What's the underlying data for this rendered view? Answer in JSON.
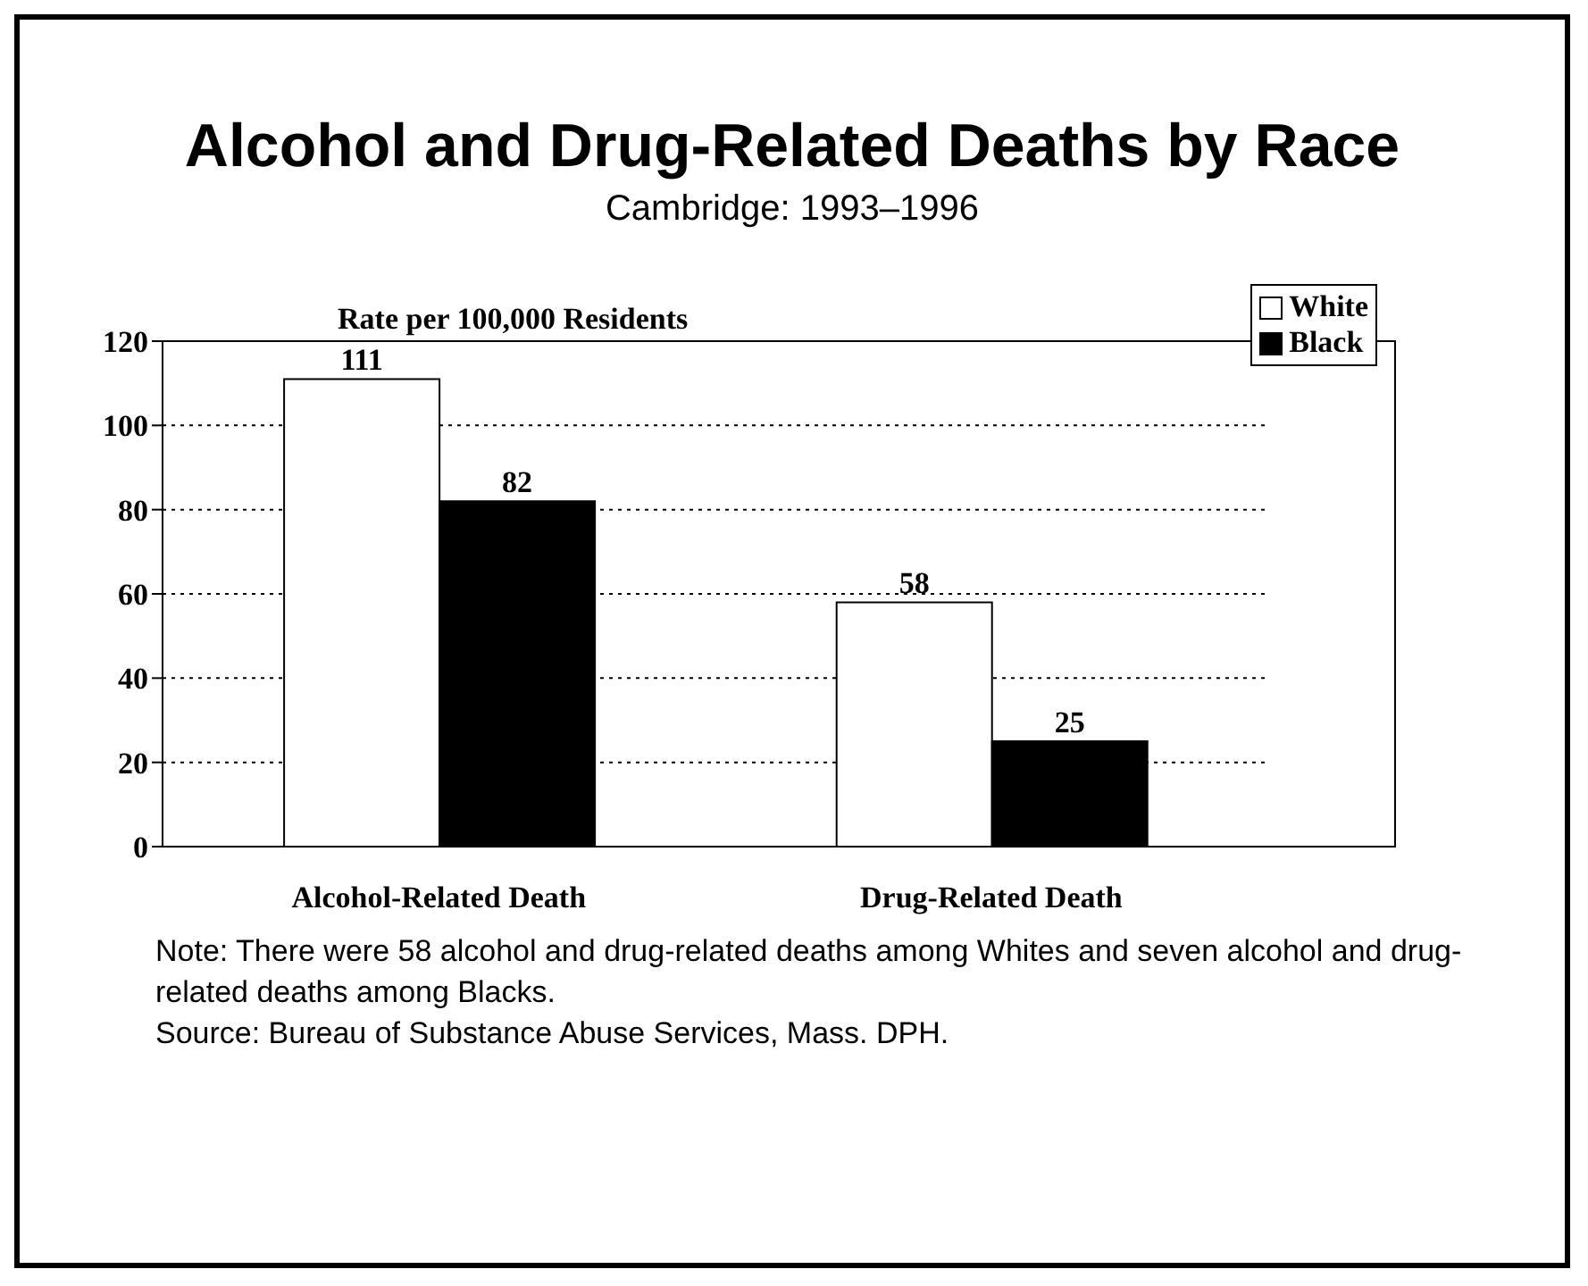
{
  "chart_data": {
    "type": "bar",
    "title": "Alcohol and Drug-Related Deaths by Race",
    "subtitle": "Cambridge: 1993–1996",
    "ylabel": "Rate per 100,000 Residents",
    "categories": [
      "Alcohol-Related Death",
      "Drug-Related Death"
    ],
    "series": [
      {
        "name": "White",
        "color": "#ffffff",
        "values": [
          111,
          58
        ]
      },
      {
        "name": "Black",
        "color": "#000000",
        "values": [
          82,
          25
        ]
      }
    ],
    "ylim": [
      0,
      120
    ],
    "yticks": [
      0,
      20,
      40,
      60,
      80,
      100,
      120
    ],
    "grid": "y",
    "legend": "top right",
    "data_labels": true,
    "annotations": [
      "Note: There were 58 alcohol and drug-related deaths among Whites and seven alcohol and drug-related deaths among Blacks.",
      "Source: Bureau of Substance Abuse Services, Mass. DPH."
    ]
  }
}
